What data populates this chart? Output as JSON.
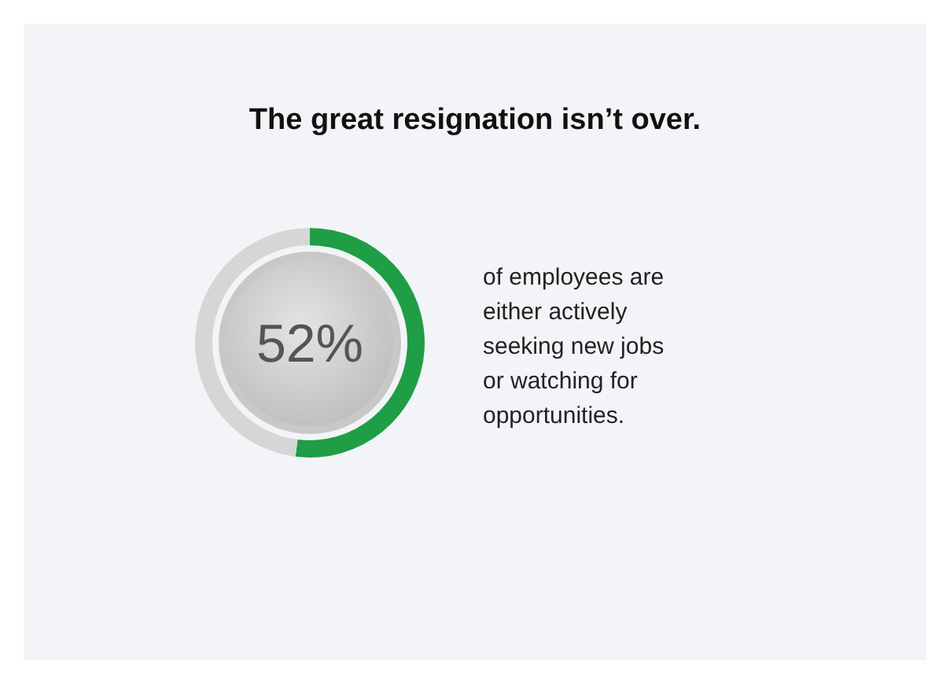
{
  "chart_data": {
    "type": "donut",
    "title": "The great resignation isn’t over.",
    "categories": [
      null,
      null
    ],
    "values": [
      52,
      48
    ],
    "colors": [
      "#1f9e45",
      "#d6d6d6"
    ],
    "value_labels": [
      "52%",
      null
    ],
    "annotations": [
      "of employees are either actively seeking new jobs or watching for opportunities."
    ]
  }
}
